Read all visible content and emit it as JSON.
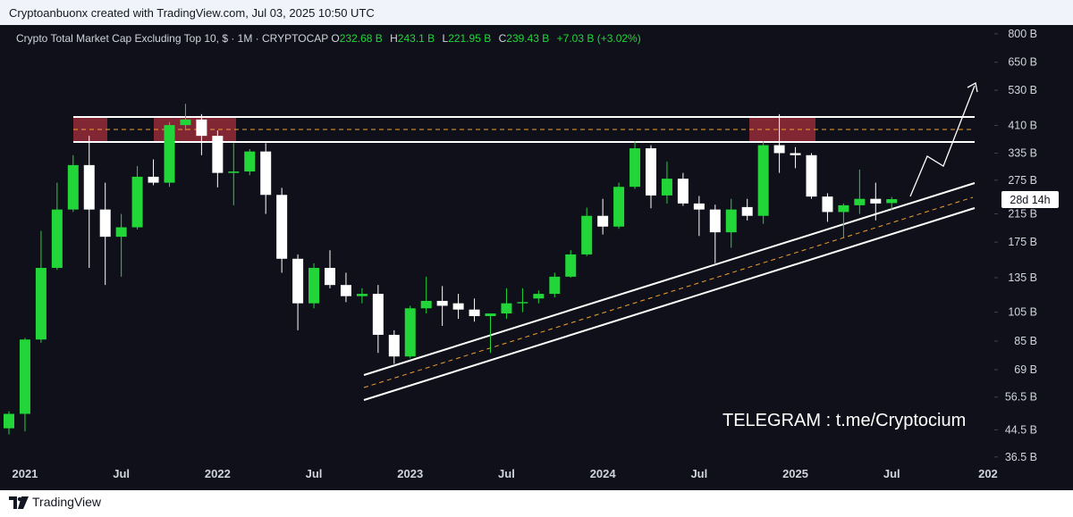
{
  "header": {
    "credit": "Cryptoanbuonx created with TradingView.com, Jul 03, 2025 10:50 UTC"
  },
  "chart_data": {
    "type": "candlestick",
    "title": "Crypto Total Market Cap Excluding Top 10, $ · 1M · CRYPTOCAP",
    "ohlc_legend": [
      {
        "key": "O",
        "value": "232.68 B"
      },
      {
        "key": "H",
        "value": "243.1 B"
      },
      {
        "key": "L",
        "value": "221.95 B"
      },
      {
        "key": "C",
        "value": "239.43 B"
      }
    ],
    "change": "+7.03 B (+3.02%)",
    "categories": [
      null,
      "2021",
      null,
      null,
      null,
      null,
      null,
      "Jul",
      null,
      null,
      null,
      null,
      null,
      "2022",
      null,
      null,
      null,
      null,
      null,
      "Jul",
      null,
      null,
      null,
      null,
      null,
      "2023",
      null,
      null,
      null,
      null,
      null,
      "Jul",
      null,
      null,
      null,
      null,
      null,
      "2024",
      null,
      null,
      null,
      null,
      null,
      "Jul",
      null,
      null,
      null,
      null,
      null,
      "2025",
      null,
      null,
      null,
      null,
      null,
      "Jul",
      null,
      null,
      null,
      null,
      null,
      "202"
    ],
    "open": [
      45,
      50,
      86,
      145,
      222,
      307,
      222,
      182,
      195,
      282,
      270,
      411,
      428,
      380,
      290,
      293,
      339,
      247,
      155,
      112,
      145,
      128,
      118,
      120,
      89,
      76,
      108,
      114,
      112,
      107,
      102,
      104,
      112,
      116,
      120,
      136,
      160,
      212,
      196,
      262,
      347,
      246,
      278,
      232,
      222,
      188,
      226,
      212,
      355,
      335,
      330,
      244,
      218,
      229,
      240,
      232.68,
      null,
      null,
      null,
      null,
      null,
      null
    ],
    "high": [
      51,
      87,
      190,
      270,
      330,
      380,
      270,
      215,
      305,
      320,
      420,
      480,
      445,
      395,
      360,
      345,
      360,
      260,
      160,
      150,
      165,
      140,
      125,
      128,
      92,
      110,
      136,
      127,
      120,
      116,
      104,
      125,
      125,
      123,
      140,
      165,
      225,
      240,
      270,
      365,
      355,
      315,
      290,
      245,
      230,
      240,
      240,
      365,
      445,
      350,
      335,
      250,
      232,
      297,
      270,
      243.1,
      null,
      null,
      null,
      null,
      null,
      null
    ],
    "low": [
      43,
      44,
      84,
      143,
      218,
      145,
      128,
      136,
      192,
      265,
      262,
      395,
      330,
      261,
      229,
      285,
      215,
      140,
      92,
      108,
      125,
      113,
      112,
      78,
      72,
      75,
      104,
      95,
      100,
      98,
      78,
      100,
      105,
      112,
      117,
      135,
      158,
      185,
      193,
      258,
      224,
      232,
      228,
      183,
      150,
      168,
      205,
      200,
      290,
      300,
      240,
      203,
      180,
      215,
      205,
      221.95,
      null,
      null,
      null,
      null,
      null,
      null
    ],
    "close": [
      50,
      86,
      145,
      222,
      307,
      222,
      182,
      195,
      282,
      270,
      411,
      428,
      380,
      290,
      293,
      339,
      247,
      155,
      112,
      145,
      128,
      118,
      120,
      89,
      76,
      108,
      114,
      110,
      107,
      102,
      104,
      112,
      113,
      120,
      136,
      160,
      212,
      196,
      262,
      347,
      246,
      278,
      232,
      222,
      188,
      222,
      212,
      355,
      335,
      330,
      244,
      218,
      229,
      240,
      232,
      239.43,
      null,
      null,
      null,
      null,
      null,
      null
    ],
    "up_color": "#22d63a",
    "down_color": "#ffffff",
    "log_scale": true,
    "ylim": [
      34.6,
      842
    ],
    "yticks": [
      {
        "value": 800,
        "label": "800 B"
      },
      {
        "value": 650,
        "label": "650 B"
      },
      {
        "value": 530,
        "label": "530 B"
      },
      {
        "value": 410,
        "label": "410 B"
      },
      {
        "value": 335,
        "label": "335 B"
      },
      {
        "value": 275,
        "label": "275 B"
      },
      {
        "value": 215,
        "label": "215 B"
      },
      {
        "value": 175,
        "label": "175 B"
      },
      {
        "value": 135,
        "label": "135 B"
      },
      {
        "value": 105,
        "label": "105 B"
      },
      {
        "value": 85,
        "label": "85 B"
      },
      {
        "value": 69,
        "label": "69 B"
      },
      {
        "value": 56.5,
        "label": "56.5 B"
      },
      {
        "value": 44.5,
        "label": "44.5 B"
      },
      {
        "value": 36.5,
        "label": "36.5 B"
      }
    ],
    "countdown": "28d 14h",
    "annotation": "TELEGRAM : t.me/Cryptocium"
  },
  "footer": {
    "brand": "TradingView"
  }
}
